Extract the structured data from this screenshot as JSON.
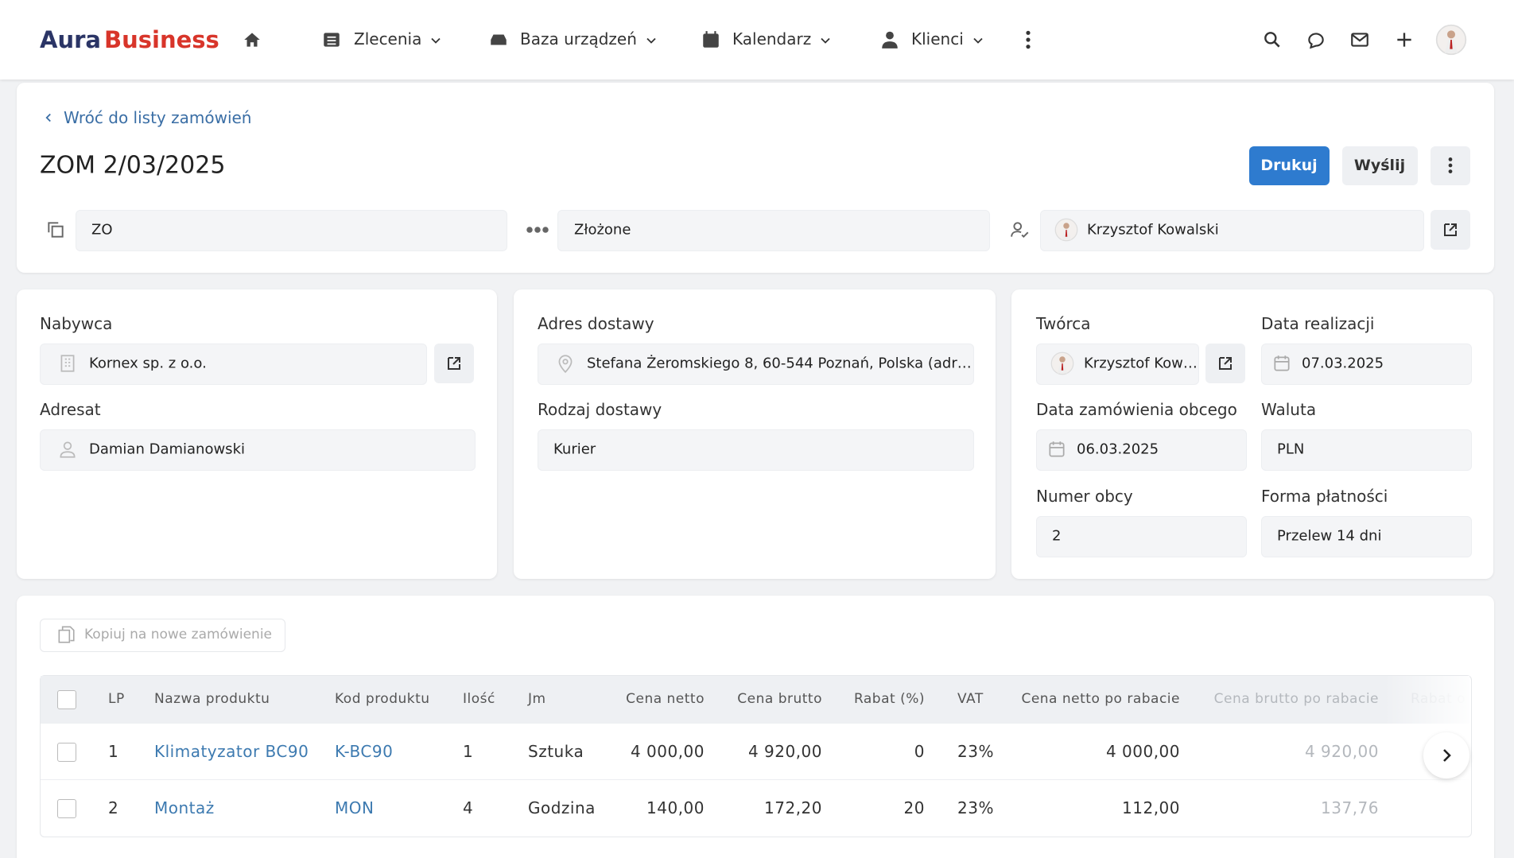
{
  "header": {
    "brand": {
      "part1": "Aura",
      "part2": "Business"
    },
    "nav": [
      "Zlecenia",
      "Baza urządzeń",
      "Kalendarz",
      "Klienci"
    ]
  },
  "order": {
    "back_link": "Wróć do listy zamówień",
    "title": "ZOM 2/03/2025",
    "actions": [
      "Drukuj",
      "Wyślij"
    ],
    "type": "ZO",
    "status": "Złożone",
    "owner": "Krzysztof Kowalski"
  },
  "buyer_card": {
    "buyer_label": "Nabywca",
    "buyer": "Kornex sp. z o.o.",
    "recipient_label": "Adresat",
    "recipient": "Damian Damianowski"
  },
  "delivery_card": {
    "address_label": "Adres dostawy",
    "address": "Stefana Żeromskiego 8, 60-544 Poznań, Polska (adr…",
    "delivery_type_label": "Rodzaj dostawy",
    "delivery_type": "Kurier"
  },
  "details_card": {
    "fields": [
      {
        "label": "Twórca",
        "value": "Krzysztof Kow…"
      },
      {
        "label": "Data realizacji",
        "value": "07.03.2025"
      },
      {
        "label": "Data zamówienia obcego",
        "value": "06.03.2025"
      },
      {
        "label": "Waluta",
        "value": "PLN"
      },
      {
        "label": "Numer obcy",
        "value": "2"
      },
      {
        "label": "Forma płatności",
        "value": "Przelew 14 dni"
      }
    ]
  },
  "items": {
    "copy_button": "Kopiuj na nowe zamówienie",
    "columns": [
      "LP",
      "Nazwa produktu",
      "Kod produktu",
      "Ilość",
      "Jm",
      "Cena netto",
      "Cena brutto",
      "Rabat (%)",
      "VAT",
      "Cena netto po rabacie",
      "Cena brutto po rabacie",
      "Rabat o"
    ],
    "rows": [
      [
        "1",
        "Klimatyzator BC90",
        "K-BC90",
        "1",
        "Sztuka",
        "4 000,00",
        "4 920,00",
        "0",
        "23%",
        "4 000,00",
        "4 920,00"
      ],
      [
        "2",
        "Montaż",
        "MON",
        "4",
        "Godzina",
        "140,00",
        "172,20",
        "20",
        "23%",
        "112,00",
        "137,76"
      ]
    ]
  }
}
